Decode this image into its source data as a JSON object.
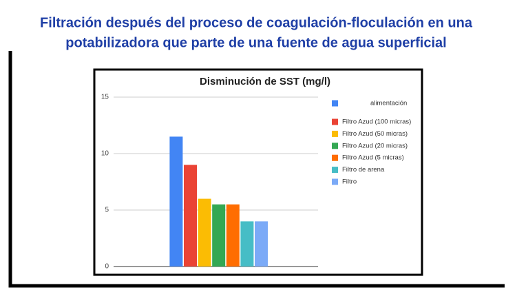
{
  "slide_title": [
    "Filtración después del proceso de coagulación-floculación en una",
    "potabilizadora que parte de una fuente de agua superficial"
  ],
  "chart_data": {
    "type": "bar",
    "title": "Disminución de SST (mg/l)",
    "categories": [
      null
    ],
    "series": [
      {
        "name": "alimentación",
        "color": "#4285f4",
        "values": [
          11.5
        ]
      },
      {
        "name": "Filtro Azud (100 micras)",
        "color": "#ea4335",
        "values": [
          9
        ]
      },
      {
        "name": "Filtro Azud (50 micras)",
        "color": "#fbbc04",
        "values": [
          6
        ]
      },
      {
        "name": "Filtro Azud (20 micras)",
        "color": "#34a853",
        "values": [
          5.5
        ]
      },
      {
        "name": "Filtro Azud (5 micras)",
        "color": "#ff6d01",
        "values": [
          5.5
        ]
      },
      {
        "name": "Filtro de arena",
        "color": "#46bdc6",
        "values": [
          4
        ]
      },
      {
        "name": "Filtro",
        "color": "#7baaf7",
        "values": [
          4
        ]
      }
    ],
    "ylim": [
      0,
      15
    ],
    "yticks": [
      0,
      5,
      10,
      15
    ],
    "grid": true,
    "legend": "right"
  }
}
